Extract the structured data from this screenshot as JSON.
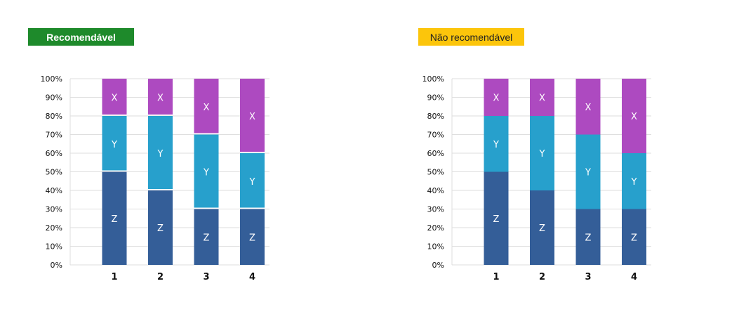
{
  "legend_colors": {
    "Z": "#345e98",
    "Y": "#27a0cc",
    "X": "#ad4ac0",
    "grid": "#dedede"
  },
  "chart_data": [
    {
      "type": "bar",
      "title": "Recomendável",
      "title_color": "#1e8a2b",
      "categories": [
        "1",
        "2",
        "3",
        "4"
      ],
      "ylim": [
        0,
        100
      ],
      "yticks": [
        "0%",
        "10%",
        "20%",
        "30%",
        "40%",
        "50%",
        "60%",
        "70%",
        "80%",
        "90%",
        "100%"
      ],
      "stacked": true,
      "grid": true,
      "segment_separators": true,
      "series": [
        {
          "name": "Z",
          "values": [
            50,
            40,
            30,
            30
          ]
        },
        {
          "name": "Y",
          "values": [
            30,
            40,
            40,
            30
          ]
        },
        {
          "name": "X",
          "values": [
            20,
            20,
            30,
            40
          ]
        }
      ]
    },
    {
      "type": "bar",
      "title": "Não recomendável",
      "title_color": "#fcc50b",
      "categories": [
        "1",
        "2",
        "3",
        "4"
      ],
      "ylim": [
        0,
        100
      ],
      "yticks": [
        "0%",
        "10%",
        "20%",
        "30%",
        "40%",
        "50%",
        "60%",
        "70%",
        "80%",
        "90%",
        "100%"
      ],
      "stacked": true,
      "grid": true,
      "segment_separators": false,
      "series": [
        {
          "name": "Z",
          "values": [
            50,
            40,
            30,
            30
          ]
        },
        {
          "name": "Y",
          "values": [
            30,
            40,
            40,
            30
          ]
        },
        {
          "name": "X",
          "values": [
            20,
            20,
            30,
            40
          ]
        }
      ]
    }
  ]
}
